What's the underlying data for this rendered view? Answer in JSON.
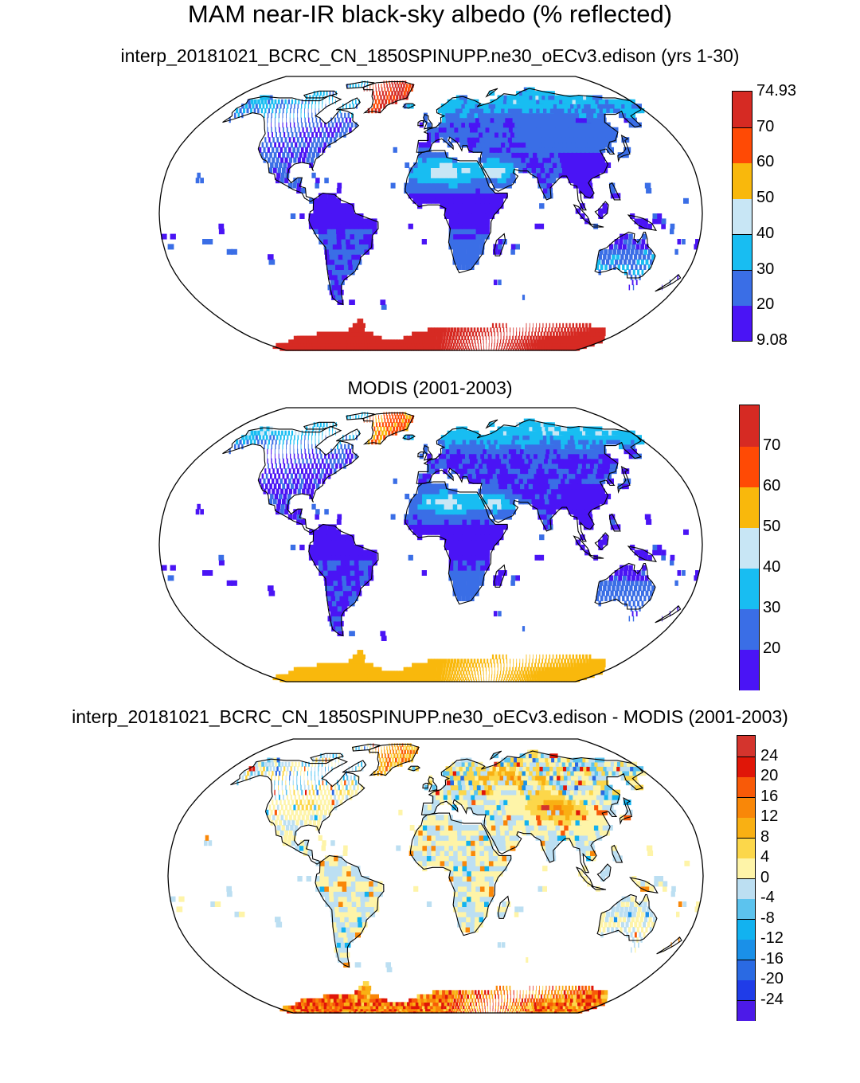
{
  "title": "MAM near-IR black-sky albedo (% reflected)",
  "chart_data": [
    {
      "type": "heatmap",
      "projection": "robinson",
      "title": "interp_20181021_BCRC_CN_1850SPINUPP.ne30_oECv3.edison (yrs 1-30)",
      "colorbar": {
        "levels": [
          "9.08",
          "20",
          "30",
          "40",
          "50",
          "60",
          "70",
          "74.93"
        ],
        "colors": [
          "#4a14f5",
          "#3a6ee6",
          "#18bdf2",
          "#c8e6f5",
          "#f9b80c",
          "#ff4a05",
          "#d62a23"
        ],
        "min": 9.08,
        "max": 74.93
      },
      "field": "model"
    },
    {
      "type": "heatmap",
      "projection": "robinson",
      "title": "MODIS (2001-2003)",
      "colorbar": {
        "levels": [
          "",
          "20",
          "30",
          "40",
          "50",
          "60",
          "70",
          ""
        ],
        "colors": [
          "#4a14f5",
          "#3a6ee6",
          "#18bdf2",
          "#c8e6f5",
          "#f9b80c",
          "#ff4a05",
          "#d62a23"
        ],
        "min": 10,
        "max": 80
      },
      "field": "obs"
    },
    {
      "type": "heatmap",
      "projection": "robinson",
      "title": "interp_20181021_BCRC_CN_1850SPINUPP.ne30_oECv3.edison - MODIS (2001-2003)",
      "colorbar": {
        "levels": [
          "",
          "-24",
          "-20",
          "-16",
          "-12",
          "-8",
          "-4",
          "0",
          "4",
          "8",
          "12",
          "16",
          "20",
          "24",
          ""
        ],
        "colors": [
          "#4c1ae8",
          "#1f3ce8",
          "#2a6ae3",
          "#1a90e8",
          "#12b2f0",
          "#5cc3ee",
          "#bcdff2",
          "#fef4a8",
          "#fcd74a",
          "#f9b013",
          "#f98708",
          "#f85a08",
          "#e01608",
          "#d4342d"
        ],
        "min": -28,
        "max": 28
      },
      "field": "diff"
    }
  ]
}
